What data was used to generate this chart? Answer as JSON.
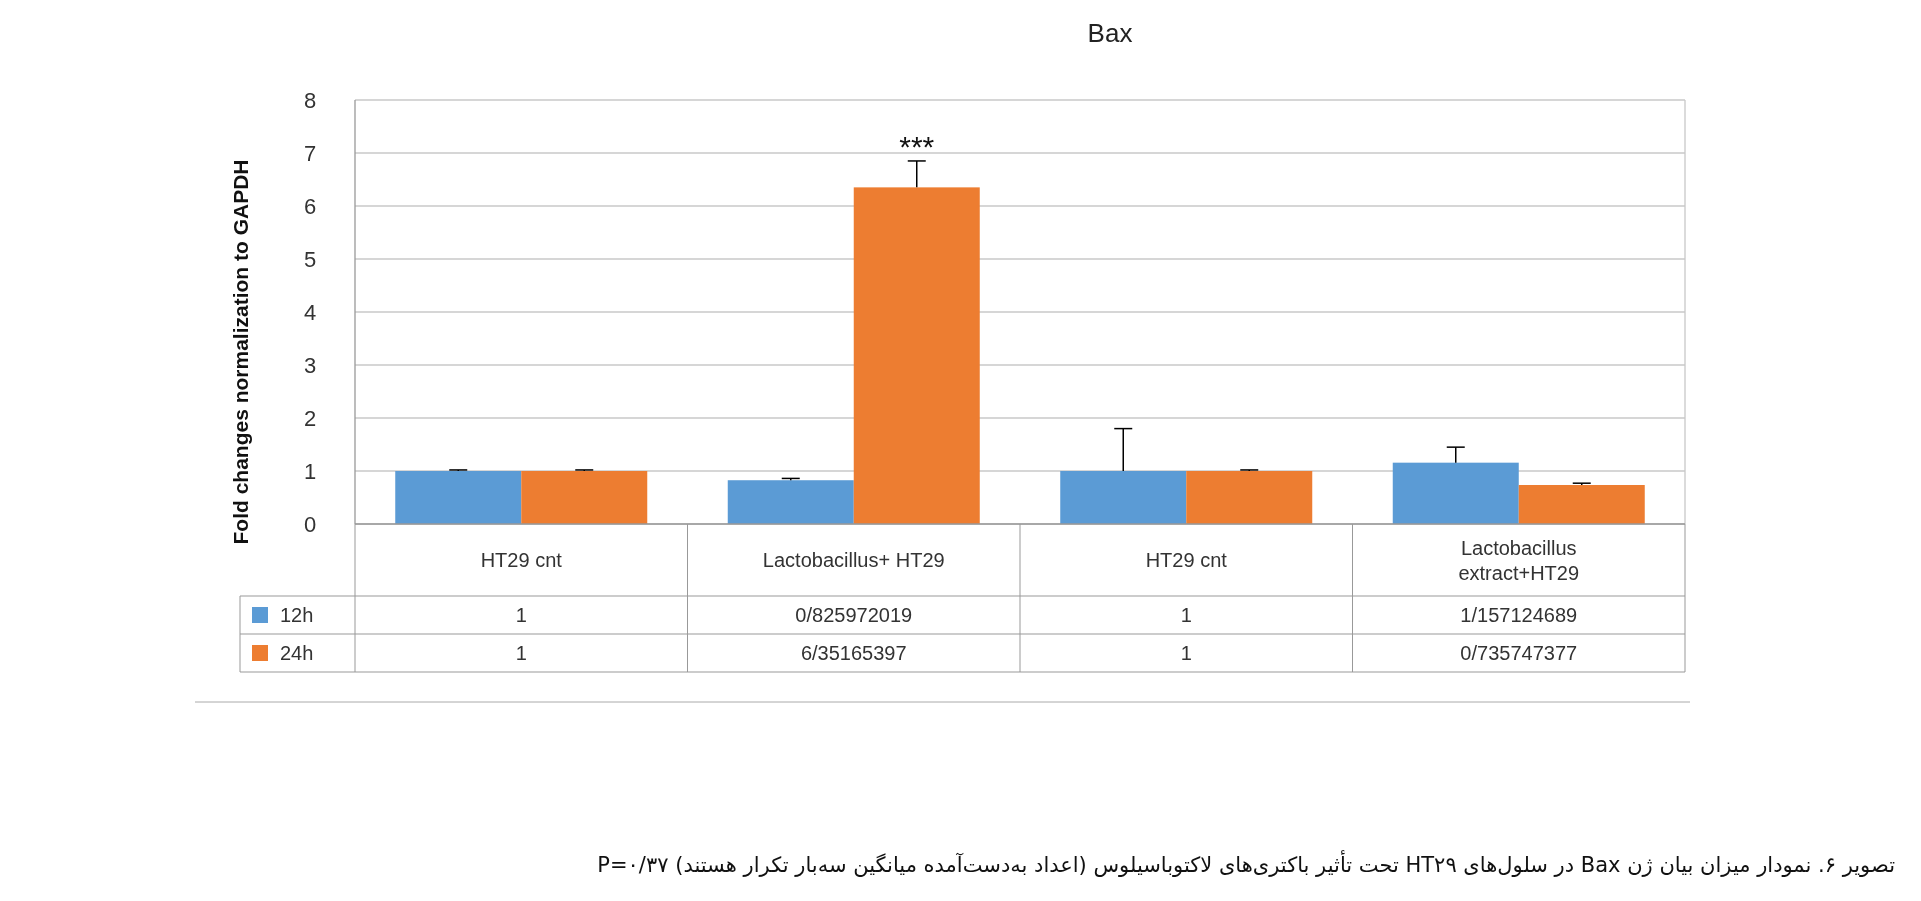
{
  "chart_data": {
    "type": "bar",
    "title": "Bax",
    "ylabel": "Fold changes normalization  to GAPDH",
    "categories": [
      "HT29 cnt",
      "Lactobacillus+ HT29",
      "HT29 cnt",
      "Lactobacillus extract+HT29"
    ],
    "series": [
      {
        "name": "12h",
        "color": "#5b9bd5",
        "values": [
          1,
          0.825972019,
          1,
          1.157124689
        ],
        "value_labels": [
          "1",
          "0/825972019",
          "1",
          "1/157124689"
        ],
        "errors": [
          [
            1,
            1.02
          ],
          [
            0.825972019,
            0.86
          ],
          [
            1,
            1.8
          ],
          [
            1.157124689,
            1.45
          ]
        ]
      },
      {
        "name": "24h",
        "color": "#ed7d31",
        "values": [
          1,
          6.35165397,
          1,
          0.735747377
        ],
        "value_labels": [
          "1",
          "6/35165397",
          "1",
          "0/735747377"
        ],
        "errors": [
          [
            1,
            1.02
          ],
          [
            6.35165397,
            6.85
          ],
          [
            1,
            1.02
          ],
          [
            0.735747377,
            0.77
          ]
        ]
      }
    ],
    "ylim": [
      0,
      8
    ],
    "yticks": [
      0,
      1,
      2,
      3,
      4,
      5,
      6,
      7,
      8
    ],
    "grid": "y",
    "legend": "bottom",
    "annotations": [
      "***",
      "تصویر ۶. نمودار میزان بیان ژن Bax در سلول‌های HT۲۹ تحت تأثیر باکتری‌های لاکتوباسیلوس (اعداد به‌دست‌آمده میانگین سه‌بار تکرار هستند) P=۰/۳۷"
    ]
  }
}
